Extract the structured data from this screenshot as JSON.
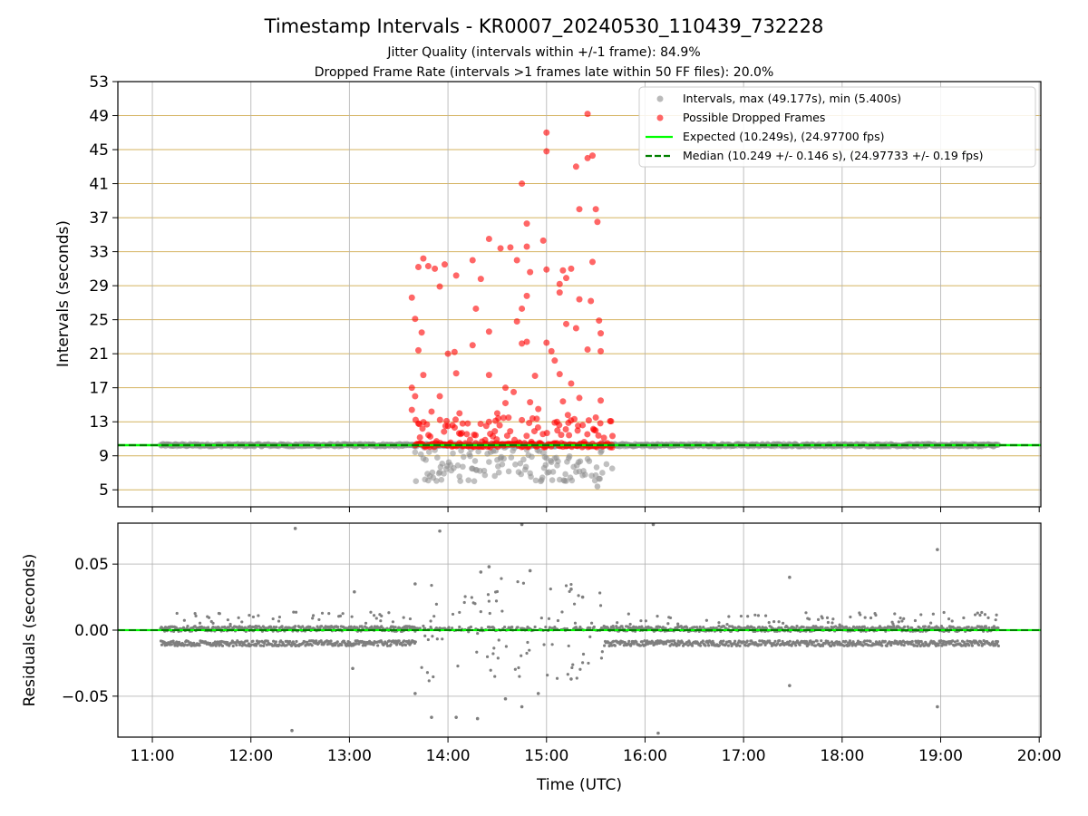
{
  "figure": {
    "title": "Timestamp Intervals - KR0007_20240530_110439_732228",
    "subtitle_1": "Jitter Quality (intervals within +/-1 frame): 84.9%",
    "subtitle_2": "Dropped Frame Rate (intervals >1 frames late within 50 FF files): 20.0%"
  },
  "colors": {
    "intervals": "#8c8c8c",
    "dropped": "#ff0000",
    "expected": "#00ff00",
    "median": "#007f00",
    "hgrid_top": "#d4b35f",
    "grid": "#b0b0b0",
    "residuals": "#7f7f7f"
  },
  "chart_data": [
    {
      "type": "scatter",
      "ylabel": "Intervals (seconds)",
      "ylim": [
        3,
        53
      ],
      "yticks": [
        "5",
        "9",
        "13",
        "17",
        "21",
        "25",
        "29",
        "33",
        "37",
        "41",
        "45",
        "49",
        "53"
      ],
      "xlim": [
        "10:39",
        "20:01"
      ],
      "legend_position": "top-right",
      "legend": [
        {
          "label": "Intervals, max (49.177s), min (5.400s)",
          "marker": "dot",
          "color": "#8c8c8c"
        },
        {
          "label": "Possible Dropped Frames",
          "marker": "dot",
          "color": "#ff0000"
        },
        {
          "label": "Expected (10.249s), (24.97700 fps)",
          "marker": "line",
          "color": "#00ff00"
        },
        {
          "label": "Median (10.249 +/- 0.146 s), (24.97733 +/- 0.19 fps)",
          "marker": "dashed",
          "color": "#007f00"
        }
      ],
      "expected_value": 10.249,
      "median_value": 10.249,
      "series": [
        {
          "name": "Intervals, max (49.177s), min (5.400s)",
          "from": "11:05",
          "to": "19:35",
          "typical": 10.25,
          "max": 49.177,
          "min": 5.4
        },
        {
          "name": "Possible Dropped Frames",
          "from": "13:40",
          "to": "15:40",
          "highlighted_points": [
            [
              "15:25",
              49.2
            ],
            [
              "15:00",
              47.0
            ],
            [
              "15:00",
              44.8
            ],
            [
              "15:28",
              44.3
            ],
            [
              "15:25",
              44.0
            ],
            [
              "15:18",
              43.0
            ],
            [
              "14:45",
              41.0
            ],
            [
              "15:30",
              38.0
            ],
            [
              "15:20",
              38.0
            ],
            [
              "15:31",
              36.5
            ],
            [
              "14:48",
              36.3
            ],
            [
              "14:25",
              34.5
            ],
            [
              "14:58",
              34.3
            ],
            [
              "14:32",
              33.4
            ],
            [
              "14:38",
              33.5
            ],
            [
              "14:48",
              33.6
            ],
            [
              "14:42",
              32.0
            ],
            [
              "14:15",
              32.0
            ],
            [
              "13:45",
              32.2
            ],
            [
              "13:42",
              31.2
            ],
            [
              "13:48",
              31.3
            ],
            [
              "13:52",
              31.0
            ],
            [
              "13:58",
              31.5
            ],
            [
              "14:50",
              30.6
            ],
            [
              "15:00",
              30.9
            ],
            [
              "15:10",
              30.8
            ],
            [
              "15:15",
              31.0
            ],
            [
              "15:28",
              31.8
            ],
            [
              "14:05",
              30.2
            ],
            [
              "14:20",
              29.8
            ],
            [
              "13:55",
              28.9
            ],
            [
              "15:08",
              29.2
            ],
            [
              "15:12",
              29.9
            ],
            [
              "13:38",
              27.6
            ],
            [
              "14:48",
              27.8
            ],
            [
              "15:08",
              28.2
            ],
            [
              "15:20",
              27.4
            ],
            [
              "15:27",
              27.2
            ],
            [
              "14:17",
              26.3
            ],
            [
              "14:45",
              26.3
            ],
            [
              "13:40",
              25.1
            ],
            [
              "14:42",
              24.8
            ],
            [
              "15:12",
              24.5
            ],
            [
              "15:32",
              24.9
            ],
            [
              "14:25",
              23.6
            ],
            [
              "13:44",
              23.5
            ],
            [
              "15:18",
              24.0
            ],
            [
              "15:33",
              23.4
            ],
            [
              "13:42",
              21.4
            ],
            [
              "14:00",
              21.0
            ],
            [
              "14:04",
              21.2
            ],
            [
              "14:15",
              22.0
            ],
            [
              "14:45",
              22.2
            ],
            [
              "14:48",
              22.4
            ],
            [
              "15:00",
              22.3
            ],
            [
              "15:03",
              21.3
            ],
            [
              "15:25",
              21.5
            ],
            [
              "15:33",
              21.3
            ],
            [
              "14:25",
              18.5
            ],
            [
              "13:45",
              18.5
            ],
            [
              "14:05",
              18.7
            ],
            [
              "14:53",
              18.4
            ],
            [
              "15:08",
              18.6
            ],
            [
              "15:05",
              20.2
            ],
            [
              "13:38",
              17.0
            ],
            [
              "14:35",
              17.0
            ],
            [
              "15:15",
              17.5
            ],
            [
              "13:40",
              16.0
            ],
            [
              "13:55",
              16.0
            ],
            [
              "14:40",
              16.5
            ],
            [
              "15:20",
              15.8
            ],
            [
              "15:33",
              15.5
            ],
            [
              "14:35",
              15.2
            ],
            [
              "14:50",
              15.3
            ],
            [
              "15:10",
              15.4
            ],
            [
              "13:38",
              14.4
            ],
            [
              "13:50",
              14.2
            ],
            [
              "14:07",
              14.0
            ],
            [
              "14:30",
              14.0
            ],
            [
              "14:55",
              14.5
            ],
            [
              "15:13",
              13.8
            ],
            [
              "15:30",
              13.5
            ],
            [
              "13:42",
              12.8
            ],
            [
              "14:00",
              12.5
            ],
            [
              "14:12",
              12.8
            ],
            [
              "14:25",
              13.0
            ],
            [
              "14:45",
              13.2
            ],
            [
              "15:05",
              12.9
            ],
            [
              "15:22",
              12.6
            ],
            [
              "15:40",
              10.0
            ]
          ]
        }
      ]
    },
    {
      "type": "scatter",
      "xlabel": "Time (UTC)",
      "ylabel": "Residuals (seconds)",
      "ylim": [
        -0.081,
        0.081
      ],
      "yticks": [
        "0.05",
        "0.00",
        "−0.05"
      ],
      "xticks": [
        "11:00",
        "12:00",
        "13:00",
        "14:00",
        "15:00",
        "16:00",
        "17:00",
        "18:00",
        "19:00",
        "20:00"
      ],
      "zero_line_color": "#00ff00",
      "median_line": 0.0,
      "series": [
        {
          "name": "residuals",
          "from": "11:05",
          "to": "19:35",
          "bands": [
            0.001,
            -0.01
          ],
          "outliers": [
            [
              "12:27",
              0.077
            ],
            [
              "13:55",
              0.075
            ],
            [
              "14:45",
              0.08
            ],
            [
              "16:05",
              0.08
            ],
            [
              "18:58",
              0.061
            ],
            [
              "17:28",
              0.04
            ],
            [
              "13:40",
              0.035
            ],
            [
              "14:25",
              0.048
            ],
            [
              "14:20",
              0.044
            ],
            [
              "14:50",
              0.045
            ],
            [
              "15:15",
              0.031
            ],
            [
              "15:22",
              0.025
            ],
            [
              "13:03",
              0.029
            ],
            [
              "12:25",
              -0.076
            ],
            [
              "13:50",
              -0.066
            ],
            [
              "14:05",
              -0.066
            ],
            [
              "14:18",
              -0.067
            ],
            [
              "14:45",
              -0.058
            ],
            [
              "14:55",
              -0.048
            ],
            [
              "15:15",
              -0.037
            ],
            [
              "17:28",
              -0.042
            ],
            [
              "18:58",
              -0.058
            ],
            [
              "16:08",
              -0.078
            ],
            [
              "13:40",
              -0.048
            ],
            [
              "14:35",
              -0.052
            ],
            [
              "13:02",
              -0.029
            ]
          ]
        }
      ]
    }
  ]
}
